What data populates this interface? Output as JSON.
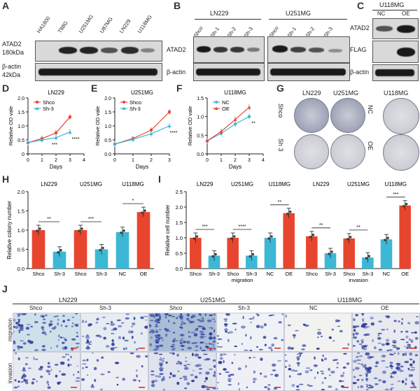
{
  "panels": {
    "A": "A",
    "B": "B",
    "C": "C",
    "D": "D",
    "E": "E",
    "F": "F",
    "G": "G",
    "H": "H",
    "I": "I",
    "J": "J"
  },
  "panelA": {
    "lanes": [
      "HA1800",
      "T98G",
      "U251MG",
      "U87MG",
      "LN229",
      "U118MG"
    ],
    "row1_label": "ATAD2",
    "row1_kda": "180kDa",
    "row2_label": "β-actin",
    "row2_kda": "42kDa"
  },
  "panelB": {
    "group1": "LN229",
    "group2": "U251MG",
    "lanes": [
      "Shco",
      "Sh-1",
      "Sh-2",
      "Sh-3"
    ],
    "row1_label": "ATAD2",
    "row2_label": "β-actin"
  },
  "panelC": {
    "title": "U118MG",
    "lanes": [
      "NC",
      "OE"
    ],
    "rows": [
      "ATAD2",
      "FLAG",
      "β-actin"
    ]
  },
  "panelG": {
    "col_labels": [
      "LN229",
      "U251MG",
      "U118MG"
    ],
    "row_labels_left": [
      "Shco",
      "Sh 3"
    ],
    "row_labels_right": [
      "NC",
      "OE"
    ]
  },
  "panelJ": {
    "groups": [
      "LN229",
      "U251MG",
      "U118MG"
    ],
    "cols": [
      "Shco",
      "Sh-3",
      "Shco",
      "Sh-3",
      "NC",
      "OE"
    ],
    "rows": [
      "migration",
      "invasion"
    ]
  },
  "colors": {
    "shco": "#e8452f",
    "sh3": "#3cb8d6",
    "text": "#222"
  },
  "chart_data": [
    {
      "type": "line",
      "panel": "D",
      "title": "LN229",
      "xlabel": "Days",
      "ylabel": "Relative OD vale",
      "x": [
        0,
        1,
        2,
        3
      ],
      "xlim": [
        0,
        4
      ],
      "ylim": [
        0,
        2.0
      ],
      "yticks": [
        "0",
        "0.5",
        "1.0",
        "1.5",
        "2.0"
      ],
      "series": [
        {
          "name": "Shco",
          "values": [
            0.4,
            0.55,
            0.75,
            1.32
          ],
          "color": "#e8452f"
        },
        {
          "name": "Sh-3",
          "values": [
            0.4,
            0.5,
            0.58,
            0.78
          ],
          "color": "#3cb8d6"
        }
      ],
      "annotations": [
        "***",
        "****"
      ]
    },
    {
      "type": "line",
      "panel": "E",
      "title": "U251MG",
      "xlabel": "Days",
      "ylabel": "Relative OD vale",
      "x": [
        0,
        1,
        2,
        3
      ],
      "xlim": [
        0,
        3
      ],
      "ylim": [
        0,
        2.0
      ],
      "yticks": [
        "0.0",
        "0.5",
        "1.0",
        "1.5",
        "2.0"
      ],
      "series": [
        {
          "name": "Shco",
          "values": [
            0.35,
            0.55,
            0.85,
            1.5
          ],
          "color": "#e8452f"
        },
        {
          "name": "Sh-3",
          "values": [
            0.35,
            0.52,
            0.72,
            1.0
          ],
          "color": "#3cb8d6"
        }
      ],
      "annotations": [
        "****"
      ]
    },
    {
      "type": "line",
      "panel": "F",
      "title": "U118MG",
      "xlabel": "Days",
      "ylabel": "Relative OD vale",
      "x": [
        0,
        1,
        2,
        3
      ],
      "xlim": [
        0,
        4
      ],
      "ylim": [
        0,
        1.5
      ],
      "yticks": [
        "0.0",
        "0.5",
        "1.0",
        "1.5"
      ],
      "series": [
        {
          "name": "NC",
          "values": [
            0.35,
            0.55,
            0.8,
            1.0
          ],
          "color": "#3cb8d6"
        },
        {
          "name": "OE",
          "values": [
            0.35,
            0.6,
            0.92,
            1.25
          ],
          "color": "#e8452f"
        }
      ],
      "annotations": [
        "**"
      ]
    },
    {
      "type": "bar",
      "panel": "H",
      "ylabel": "Relative colony number",
      "ylim": [
        0,
        2.0
      ],
      "yticks": [
        "0.0",
        "0.5",
        "1.0",
        "1.5",
        "2.0"
      ],
      "groups": [
        "LN229",
        "U251MG",
        "U118MG"
      ],
      "categories": [
        "Shco",
        "Sh-3",
        "Shco",
        "Sh-3",
        "NC",
        "OE"
      ],
      "values": [
        1.0,
        0.44,
        1.0,
        0.5,
        0.95,
        1.47
      ],
      "colors": [
        "#e8452f",
        "#3cb8d6",
        "#e8452f",
        "#3cb8d6",
        "#3cb8d6",
        "#e8452f"
      ],
      "annotations": [
        "**",
        "***",
        "*"
      ]
    },
    {
      "type": "bar",
      "panel": "I",
      "ylabel": "Relative cell number",
      "ylim": [
        0,
        2.5
      ],
      "yticks": [
        "0.0",
        "0.5",
        "1.0",
        "1.5",
        "2.0",
        "2.5"
      ],
      "groups": [
        "LN229",
        "U251MG",
        "U118MG",
        "LN229",
        "U251MG",
        "U118MG"
      ],
      "sections": [
        "migration",
        "invasion"
      ],
      "categories": [
        "Shco",
        "Sh-3",
        "Shco",
        "Sh-3",
        "NC",
        "OE",
        "Shco",
        "Sh-3",
        "Shco",
        "Sh-3",
        "NC",
        "OE"
      ],
      "values": [
        1.0,
        0.42,
        1.0,
        0.42,
        1.0,
        1.8,
        1.05,
        0.5,
        0.98,
        0.36,
        0.95,
        2.05
      ],
      "colors": [
        "#e8452f",
        "#3cb8d6",
        "#e8452f",
        "#3cb8d6",
        "#3cb8d6",
        "#e8452f",
        "#e8452f",
        "#3cb8d6",
        "#e8452f",
        "#3cb8d6",
        "#3cb8d6",
        "#e8452f"
      ],
      "annotations": [
        "***",
        "****",
        "**",
        "**",
        "**",
        "***"
      ]
    }
  ]
}
